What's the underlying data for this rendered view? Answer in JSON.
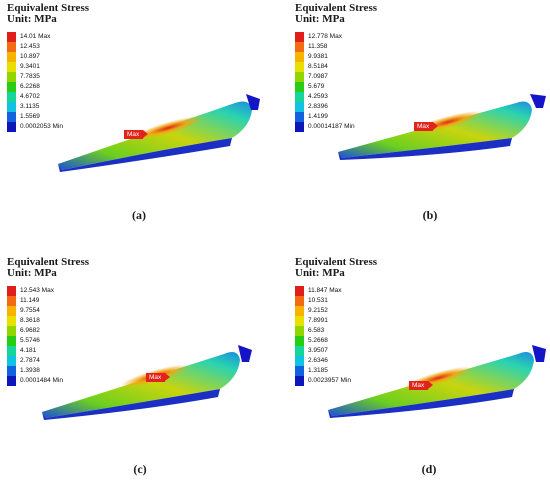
{
  "legend_colors": [
    "#e01f1a",
    "#f26a12",
    "#f6b400",
    "#e6e100",
    "#93d500",
    "#26cd12",
    "#14d69a",
    "#12c2e3",
    "#1262e0",
    "#0d16b8"
  ],
  "panels": [
    {
      "title": "Equivalent Stress",
      "unit": "Unit: MPa",
      "levels": [
        "14.01 Max",
        "12.453",
        "10.897",
        "9.3401",
        "7.7835",
        "6.2268",
        "4.6702",
        "3.1135",
        "1.5569",
        "0.0002053 Min"
      ],
      "max_tag": "Max",
      "caption": "(a)"
    },
    {
      "title": "Equivalent Stress",
      "unit": "Unit: MPa",
      "levels": [
        "12.778 Max",
        "11.358",
        "9.9381",
        "8.5184",
        "7.0987",
        "5.679",
        "4.2593",
        "2.8396",
        "1.4199",
        "0.00014187 Min"
      ],
      "max_tag": "Max",
      "caption": "(b)"
    },
    {
      "title": "Equivalent Stress",
      "unit": "Unit: MPa",
      "levels": [
        "12.543 Max",
        "11.149",
        "9.7554",
        "8.3618",
        "6.9682",
        "5.5746",
        "4.181",
        "2.7874",
        "1.3938",
        "0.0001484 Min"
      ],
      "max_tag": "Max",
      "caption": "(c)"
    },
    {
      "title": "Equivalent Stress",
      "unit": "Unit: MPa",
      "levels": [
        "11.847 Max",
        "10.531",
        "9.2152",
        "7.8991",
        "6.583",
        "5.2668",
        "3.9507",
        "2.6346",
        "1.3185",
        "0.0023957 Min"
      ],
      "max_tag": "Max",
      "caption": "(d)"
    }
  ]
}
